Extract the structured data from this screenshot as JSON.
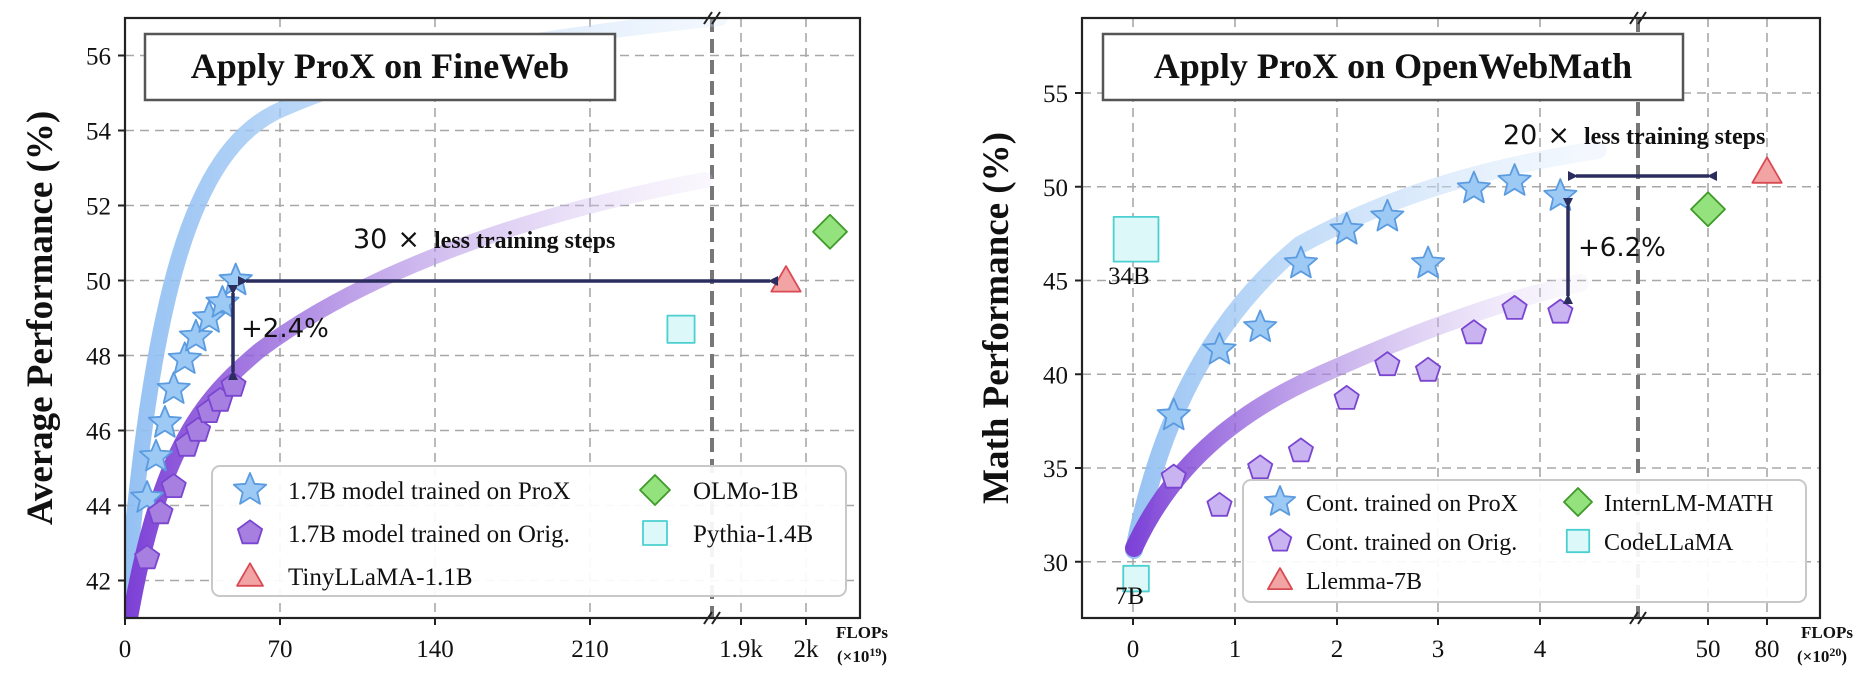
{
  "chart_data": [
    {
      "type": "scatter",
      "panel": "left",
      "title": "Apply ProX on FineWeb",
      "ylabel": "Average Performance (%)",
      "xlabel": "FLOPs",
      "xunit": "(×10",
      "xunit_exp": "19",
      "xunit_close": ")",
      "ylim": [
        41,
        57
      ],
      "yticks": [
        "42",
        "44",
        "46",
        "48",
        "50",
        "52",
        "54",
        "56"
      ],
      "xticks": [
        "0",
        "70",
        "140",
        "210",
        "1.9k",
        "2k"
      ],
      "grid": true,
      "legend": "bottom-right",
      "series": [
        {
          "name": "1.7B model trained on ProX",
          "marker": "star",
          "color": "#9ccaf5",
          "points": [
            [
              10,
              44.2
            ],
            [
              14,
              45.3
            ],
            [
              18,
              46.2
            ],
            [
              22,
              47.1
            ],
            [
              27,
              47.9
            ],
            [
              32,
              48.5
            ],
            [
              38,
              49.0
            ],
            [
              44,
              49.4
            ],
            [
              50,
              50.0
            ]
          ]
        },
        {
          "name": "1.7B model trained on Orig.",
          "marker": "pentagon",
          "color": "#a67fe0",
          "points": [
            [
              10,
              42.6
            ],
            [
              16,
              43.8
            ],
            [
              22,
              44.5
            ],
            [
              28,
              45.6
            ],
            [
              33,
              46.0
            ],
            [
              38,
              46.5
            ],
            [
              43,
              46.8
            ],
            [
              49,
              47.2
            ]
          ]
        },
        {
          "name": "TinyLLaMA-1.1B",
          "marker": "triangle",
          "color": "#f2a4a4",
          "points": [
            [
              "2k-",
              50.0
            ]
          ]
        },
        {
          "name": "OLMo-1B",
          "marker": "diamond",
          "color": "#93e27d",
          "points": [
            [
              "2k+",
              51.3
            ]
          ]
        },
        {
          "name": "Pythia-1.4B",
          "marker": "square",
          "color": "#dcf8f8",
          "points": [
            [
              "1.9k-",
              48.7
            ]
          ]
        }
      ],
      "trend_lines": [
        "ProX fit",
        "Orig. fit"
      ],
      "annotations": {
        "speedup_factor": "30",
        "speedup_symbol": "×",
        "speedup_text": "less training steps",
        "gain": "+2.4%"
      }
    },
    {
      "type": "scatter",
      "panel": "right",
      "title": "Apply ProX on OpenWebMath",
      "ylabel": "Math Performance (%)",
      "xlabel": "FLOPs",
      "xunit": "(×10",
      "xunit_exp": "20",
      "xunit_close": ")",
      "ylim": [
        27,
        59
      ],
      "yticks": [
        "30",
        "35",
        "40",
        "45",
        "50",
        "55"
      ],
      "xticks": [
        "0",
        "1",
        "2",
        "3",
        "4",
        "50",
        "80"
      ],
      "grid": true,
      "legend": "bottom-right",
      "series": [
        {
          "name": "Cont. trained on ProX",
          "marker": "star",
          "color": "#9ccaf5",
          "points": [
            [
              0.4,
              37.8
            ],
            [
              0.85,
              41.3
            ],
            [
              1.25,
              42.5
            ],
            [
              1.65,
              45.9
            ],
            [
              2.1,
              47.7
            ],
            [
              2.5,
              48.4
            ],
            [
              2.9,
              45.9
            ],
            [
              3.35,
              49.9
            ],
            [
              3.75,
              50.3
            ],
            [
              4.2,
              49.5
            ]
          ]
        },
        {
          "name": "Cont. trained on Orig.",
          "marker": "pentagon",
          "color": "#c9b3f0",
          "points": [
            [
              0.4,
              34.5
            ],
            [
              0.85,
              33.0
            ],
            [
              1.25,
              35.0
            ],
            [
              1.65,
              35.9
            ],
            [
              2.1,
              38.7
            ],
            [
              2.5,
              40.5
            ],
            [
              2.9,
              40.2
            ],
            [
              3.35,
              42.2
            ],
            [
              3.75,
              43.5
            ],
            [
              4.2,
              43.3
            ]
          ]
        },
        {
          "name": "Llemma-7B",
          "marker": "triangle",
          "color": "#f2a4a4",
          "points": [
            [
              80,
              50.8
            ]
          ]
        },
        {
          "name": "InternLM-MATH",
          "marker": "diamond",
          "color": "#93e27d",
          "points": [
            [
              50,
              48.8
            ]
          ]
        },
        {
          "name": "CodeLLaMA",
          "marker": "square",
          "color": "#dcf8f8",
          "points": [
            [
              0,
              47.2
            ],
            [
              0,
              29.1
            ]
          ]
        }
      ],
      "trend_lines": [
        "ProX fit",
        "Orig. fit"
      ],
      "annotations": {
        "speedup_factor": "20",
        "speedup_symbol": "×",
        "speedup_text": "less training steps",
        "gain": "+6.2%",
        "label_34b": "34B",
        "label_7b": "7B"
      }
    }
  ]
}
